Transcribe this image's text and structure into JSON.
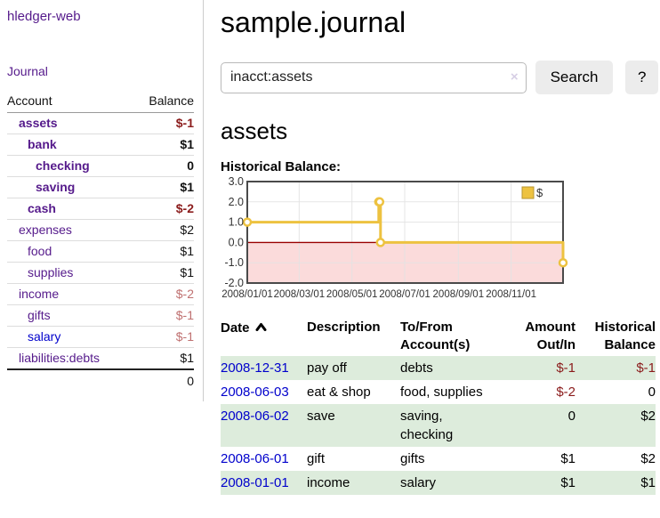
{
  "sidebar": {
    "app_title": "hledger-web",
    "journal_link": "Journal",
    "columns": {
      "account": "Account",
      "balance": "Balance"
    },
    "accounts": [
      {
        "name": "assets",
        "balance": "$-1",
        "depth": 1,
        "emphasized": true,
        "negative": true,
        "link": "visited"
      },
      {
        "name": "bank",
        "balance": "$1",
        "depth": 2,
        "emphasized": true,
        "negative": false,
        "link": "visited"
      },
      {
        "name": "checking",
        "balance": "0",
        "depth": 3,
        "emphasized": true,
        "negative": false,
        "link": "visited"
      },
      {
        "name": "saving",
        "balance": "$1",
        "depth": 3,
        "emphasized": true,
        "negative": false,
        "link": "visited"
      },
      {
        "name": "cash",
        "balance": "$-2",
        "depth": 2,
        "emphasized": true,
        "negative": true,
        "link": "visited"
      },
      {
        "name": "expenses",
        "balance": "$2",
        "depth": 1,
        "emphasized": false,
        "negative": false,
        "link": "visited"
      },
      {
        "name": "food",
        "balance": "$1",
        "depth": 2,
        "emphasized": false,
        "negative": false,
        "link": "visited"
      },
      {
        "name": "supplies",
        "balance": "$1",
        "depth": 2,
        "emphasized": false,
        "negative": false,
        "link": "visited"
      },
      {
        "name": "income",
        "balance": "$-2",
        "depth": 1,
        "emphasized": false,
        "negative": true,
        "link": "visited"
      },
      {
        "name": "gifts",
        "balance": "$-1",
        "depth": 2,
        "emphasized": false,
        "negative": true,
        "link": "visited"
      },
      {
        "name": "salary",
        "balance": "$-1",
        "depth": 2,
        "emphasized": false,
        "negative": true,
        "link": "unvisited"
      },
      {
        "name": "liabilities:debts",
        "balance": "$1",
        "depth": 1,
        "emphasized": false,
        "negative": false,
        "link": "visited"
      }
    ],
    "total": "0"
  },
  "header": {
    "title": "sample.journal"
  },
  "search": {
    "value": "inacct:assets",
    "clear_icon": "×",
    "button_label": "Search",
    "help_label": "?"
  },
  "account_page": {
    "heading": "assets",
    "chart_label": "Historical Balance:"
  },
  "chart_data": {
    "type": "line",
    "step": true,
    "title": "Historical Balance",
    "series": [
      {
        "name": "$",
        "color": "#EDC240",
        "points": [
          {
            "date": "2008-01-01",
            "value": 1
          },
          {
            "date": "2008-06-01",
            "value": 2
          },
          {
            "date": "2008-06-02",
            "value": 2
          },
          {
            "date": "2008-06-03",
            "value": 0
          },
          {
            "date": "2008-12-31",
            "value": -1
          }
        ]
      }
    ],
    "x_ticks": [
      "2008/01/01",
      "2008/03/01",
      "2008/05/01",
      "2008/07/01",
      "2008/09/01",
      "2008/11/01"
    ],
    "y_ticks": [
      "3.0",
      "2.0",
      "1.0",
      "0.0",
      "-1.0",
      "-2.0"
    ],
    "ylim": [
      -2,
      3
    ],
    "x_range": [
      "2008-01-01",
      "2008-12-31"
    ],
    "grid": true,
    "legend_position": "top-right",
    "legend_label": "$",
    "negative_region_color": "#fbdbdb",
    "zero_line_color": "#990000",
    "border_color": "#4a4a4a",
    "grid_color": "#e3e3e3"
  },
  "register": {
    "columns": {
      "date": "Date",
      "description": "Description",
      "to_from": "To/From Account(s)",
      "amount": "Amount Out/In",
      "balance": "Historical Balance"
    },
    "sort_column": "date-ascending",
    "rows": [
      {
        "date": "2008-12-31",
        "description": "pay off",
        "to_from": "debts",
        "amount": "$-1",
        "balance": "$-1",
        "amount_negative": true,
        "balance_negative": true
      },
      {
        "date": "2008-06-03",
        "description": "eat & shop",
        "to_from": "food, supplies",
        "amount": "$-2",
        "balance": "0",
        "amount_negative": true,
        "balance_negative": false
      },
      {
        "date": "2008-06-02",
        "description": "save",
        "to_from": "saving, checking",
        "amount": "0",
        "balance": "$2",
        "amount_negative": false,
        "balance_negative": false
      },
      {
        "date": "2008-06-01",
        "description": "gift",
        "to_from": "gifts",
        "amount": "$1",
        "balance": "$2",
        "amount_negative": false,
        "balance_negative": false
      },
      {
        "date": "2008-01-01",
        "description": "income",
        "to_from": "salary",
        "amount": "$1",
        "balance": "$1",
        "amount_negative": false,
        "balance_negative": false
      }
    ]
  },
  "colors": {
    "accent_purple": "#551a8b",
    "link_blue": "#0000cc",
    "negative_dark": "#8b1c1c",
    "negative_muted": "#bf7070",
    "row_stripe_green": "#ddecdc",
    "series_gold": "#EDC240"
  }
}
